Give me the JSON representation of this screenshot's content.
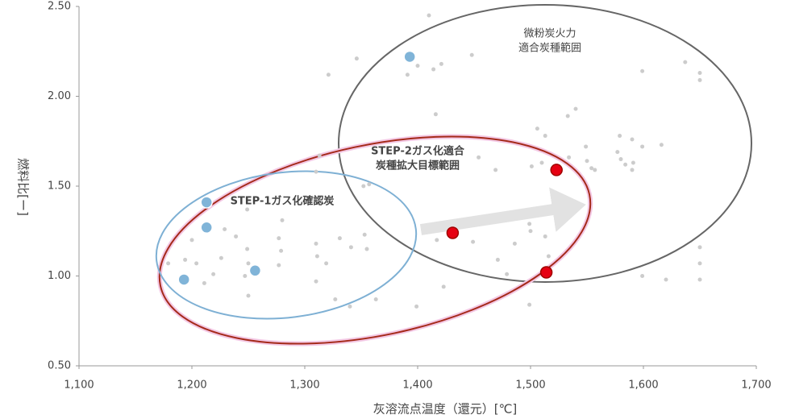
{
  "chart_data": {
    "type": "scatter",
    "xlabel": "灰溶流点温度（還元）[℃]",
    "ylabel": "燃料比[ー]",
    "xlim": [
      1100,
      1700
    ],
    "ylim": [
      0.5,
      2.5
    ],
    "xticks": [
      {
        "value": 1100,
        "label": "1,100"
      },
      {
        "value": 1200,
        "label": "1,200"
      },
      {
        "value": 1300,
        "label": "1,300"
      },
      {
        "value": 1400,
        "label": "1,400"
      },
      {
        "value": 1500,
        "label": "1,500"
      },
      {
        "value": 1600,
        "label": "1,600"
      },
      {
        "value": 1700,
        "label": "1,700"
      }
    ],
    "yticks": [
      {
        "value": 0.5,
        "label": "0.50"
      },
      {
        "value": 1,
        "label": "1.00"
      },
      {
        "value": 1.5,
        "label": "1.50"
      },
      {
        "value": 2,
        "label": "2.00"
      },
      {
        "value": 2.5,
        "label": "2.50"
      }
    ],
    "grid": false,
    "series": [
      {
        "color": "#cccccc",
        "x": [
          1410,
          1346,
          1448,
          1421,
          1414,
          1400,
          1391,
          1321,
          1637,
          1650,
          1650,
          1599,
          1416,
          1540,
          1506,
          1513,
          1533,
          1549,
          1534,
          1579,
          1590,
          1616,
          1599,
          1577,
          1580,
          1584,
          1591,
          1590,
          1554,
          1557,
          1550,
          1510,
          1501,
          1469,
          1454,
          1313,
          1310,
          1357,
          1352,
          1249,
          1280,
          1229,
          1239,
          1200,
          1179,
          1194,
          1204,
          1226,
          1249,
          1250,
          1277,
          1279,
          1277,
          1310,
          1331,
          1341,
          1353,
          1355,
          1311,
          1319,
          1417,
          1449,
          1471,
          1486,
          1499,
          1500,
          1513,
          1516,
          1219,
          1211,
          1247,
          1250,
          1310,
          1327,
          1340,
          1363,
          1399,
          1423,
          1479,
          1499,
          1650,
          1650,
          1650,
          1599,
          1620
        ],
        "values": [
          2.45,
          2.21,
          2.23,
          2.18,
          2.15,
          2.17,
          2.12,
          2.12,
          2.19,
          2.13,
          2.09,
          2.14,
          1.9,
          1.93,
          1.82,
          1.78,
          1.89,
          1.72,
          1.66,
          1.78,
          1.76,
          1.73,
          1.72,
          1.69,
          1.65,
          1.62,
          1.63,
          1.59,
          1.6,
          1.59,
          1.64,
          1.63,
          1.61,
          1.59,
          1.66,
          1.67,
          1.58,
          1.51,
          1.5,
          1.37,
          1.31,
          1.26,
          1.22,
          1.2,
          1.07,
          1.09,
          1.07,
          1.1,
          1.15,
          1.07,
          1.21,
          1.14,
          1.06,
          1.18,
          1.21,
          1.16,
          1.23,
          1.15,
          1.11,
          1.07,
          1.2,
          1.19,
          1.09,
          1.18,
          1.29,
          1.25,
          1.22,
          1.11,
          1.01,
          0.96,
          1.0,
          0.89,
          0.97,
          0.87,
          0.83,
          0.87,
          0.83,
          0.94,
          1.01,
          0.84,
          1.16,
          1.07,
          0.98,
          1.0,
          0.98
        ]
      },
      {
        "color": "#80b4d8",
        "x": [
          1393,
          1213,
          1213,
          1256,
          1193
        ],
        "values": [
          2.22,
          1.41,
          1.27,
          1.03,
          0.98
        ]
      },
      {
        "color": "#e60012",
        "x": [
          1523,
          1431,
          1514
        ],
        "values": [
          1.59,
          1.24,
          1.02
        ]
      }
    ],
    "annotations": [
      {
        "color": "#777777",
        "lines": [
          "微粉炭火力",
          "適合炭種範囲"
        ]
      },
      {
        "color": "#c00000",
        "lines": [
          "STEP-2ガス化適合",
          "炭種拡大目標範囲"
        ]
      },
      {
        "color": "#5a9fc8",
        "lines": [
          "STEP-1ガス化確認炭"
        ]
      }
    ]
  }
}
